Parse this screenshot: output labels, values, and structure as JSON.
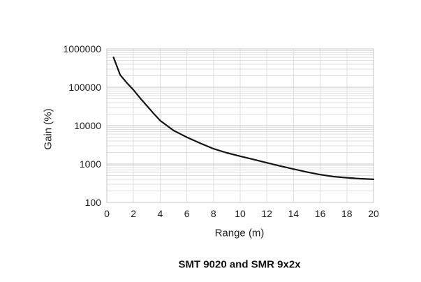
{
  "chart_data": {
    "type": "line",
    "title": "SMT 9020 and SMR 9x2x",
    "xlabel": "Range (m)",
    "ylabel": "Gain (%)",
    "x_scale": "linear",
    "y_scale": "log",
    "xlim": [
      0,
      20
    ],
    "ylim": [
      100,
      1000000
    ],
    "x_ticks": [
      0,
      2,
      4,
      6,
      8,
      10,
      12,
      14,
      16,
      18,
      20
    ],
    "y_ticks": [
      100,
      1000,
      10000,
      100000,
      1000000
    ],
    "grid": "vertical lines every 2 m; horizontal log major and minor lines",
    "legend": "none",
    "series": [
      {
        "name": "Gain",
        "x": [
          0.5,
          1,
          1.5,
          2,
          2.5,
          3,
          3.5,
          4,
          5,
          6,
          7,
          8,
          9,
          10,
          11,
          12,
          13,
          14,
          15,
          16,
          17,
          18,
          19,
          20
        ],
        "y": [
          600000,
          210000,
          130000,
          85000,
          52000,
          33000,
          21000,
          13500,
          7500,
          5000,
          3500,
          2500,
          1950,
          1600,
          1320,
          1080,
          890,
          740,
          620,
          530,
          470,
          440,
          415,
          400
        ]
      }
    ]
  },
  "colors": {
    "curve": "#141414",
    "grid_minor": "#dfdfdf",
    "grid_major": "#c6c6c6",
    "frame": "#c6c6c6",
    "text": "#1d1d1d",
    "background": "#ffffff"
  }
}
